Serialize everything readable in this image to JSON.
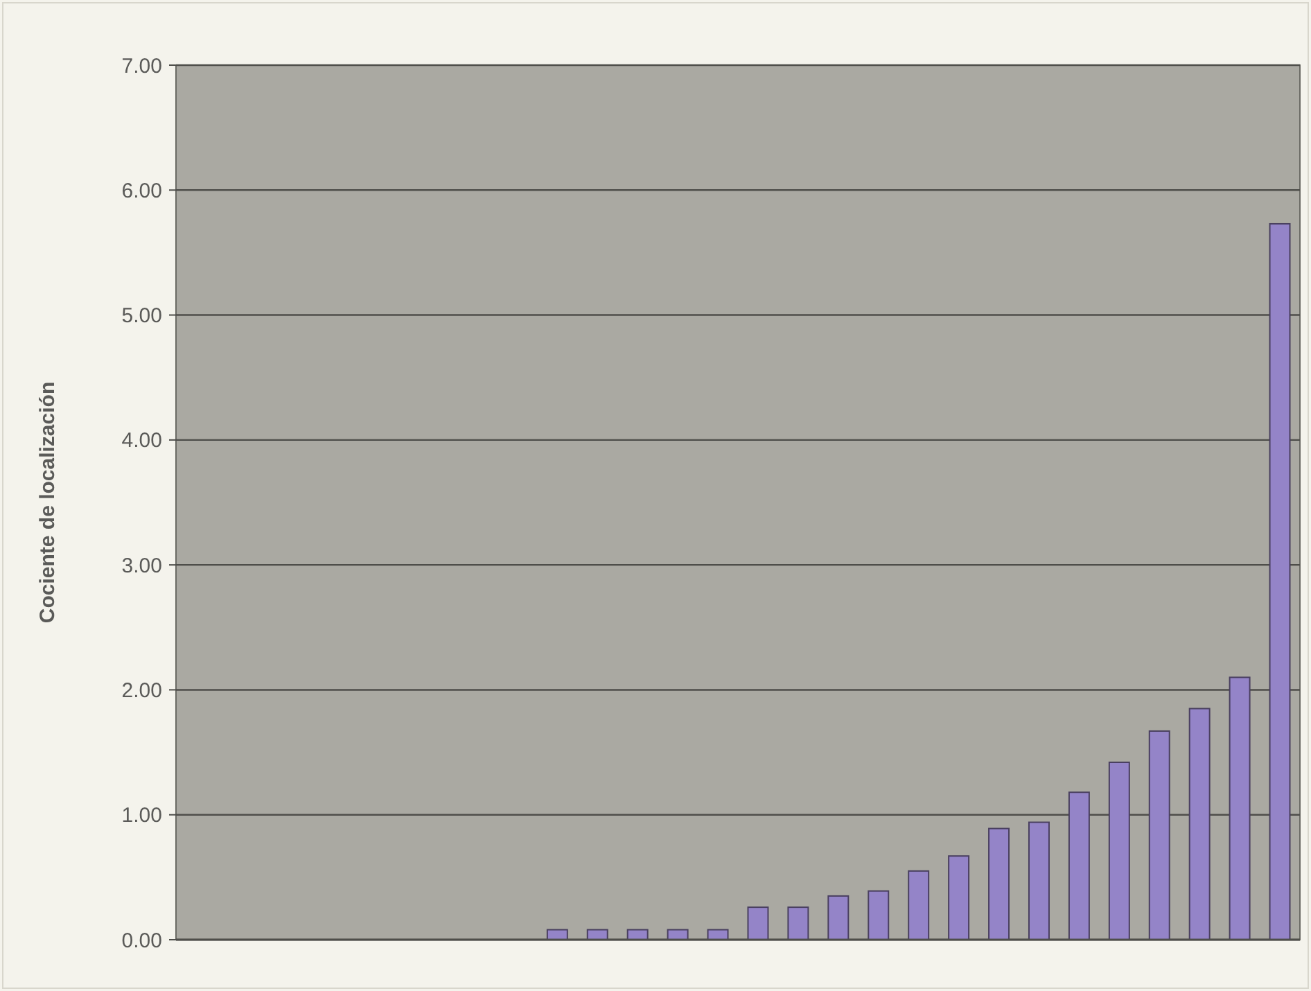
{
  "chart_data": {
    "type": "bar",
    "ylabel": "Cociente de localización",
    "categories": [
      null,
      null,
      null,
      null,
      null,
      null,
      null,
      null,
      null,
      null,
      null,
      null,
      null,
      null,
      null,
      null,
      null,
      null,
      null,
      null,
      null,
      null,
      null,
      null,
      null,
      null,
      null,
      null
    ],
    "values": [
      0,
      0,
      0,
      0,
      0,
      0,
      0,
      0,
      0,
      0.08,
      0.08,
      0.08,
      0.08,
      0.08,
      0.26,
      0.26,
      0.35,
      0.39,
      0.55,
      0.67,
      0.89,
      0.94,
      1.18,
      1.42,
      1.67,
      1.85,
      2.1,
      5.73
    ],
    "color": "#9484c8",
    "ylim": [
      0,
      7
    ],
    "yticks": [
      {
        "value": 0,
        "label": "0.00"
      },
      {
        "value": 1,
        "label": "1.00"
      },
      {
        "value": 2,
        "label": "2.00"
      },
      {
        "value": 3,
        "label": "3.00"
      },
      {
        "value": 4,
        "label": "4.00"
      },
      {
        "value": 5,
        "label": "5.00"
      },
      {
        "value": 6,
        "label": "6.00"
      },
      {
        "value": 7,
        "label": "7.00"
      }
    ],
    "grid": "y"
  }
}
